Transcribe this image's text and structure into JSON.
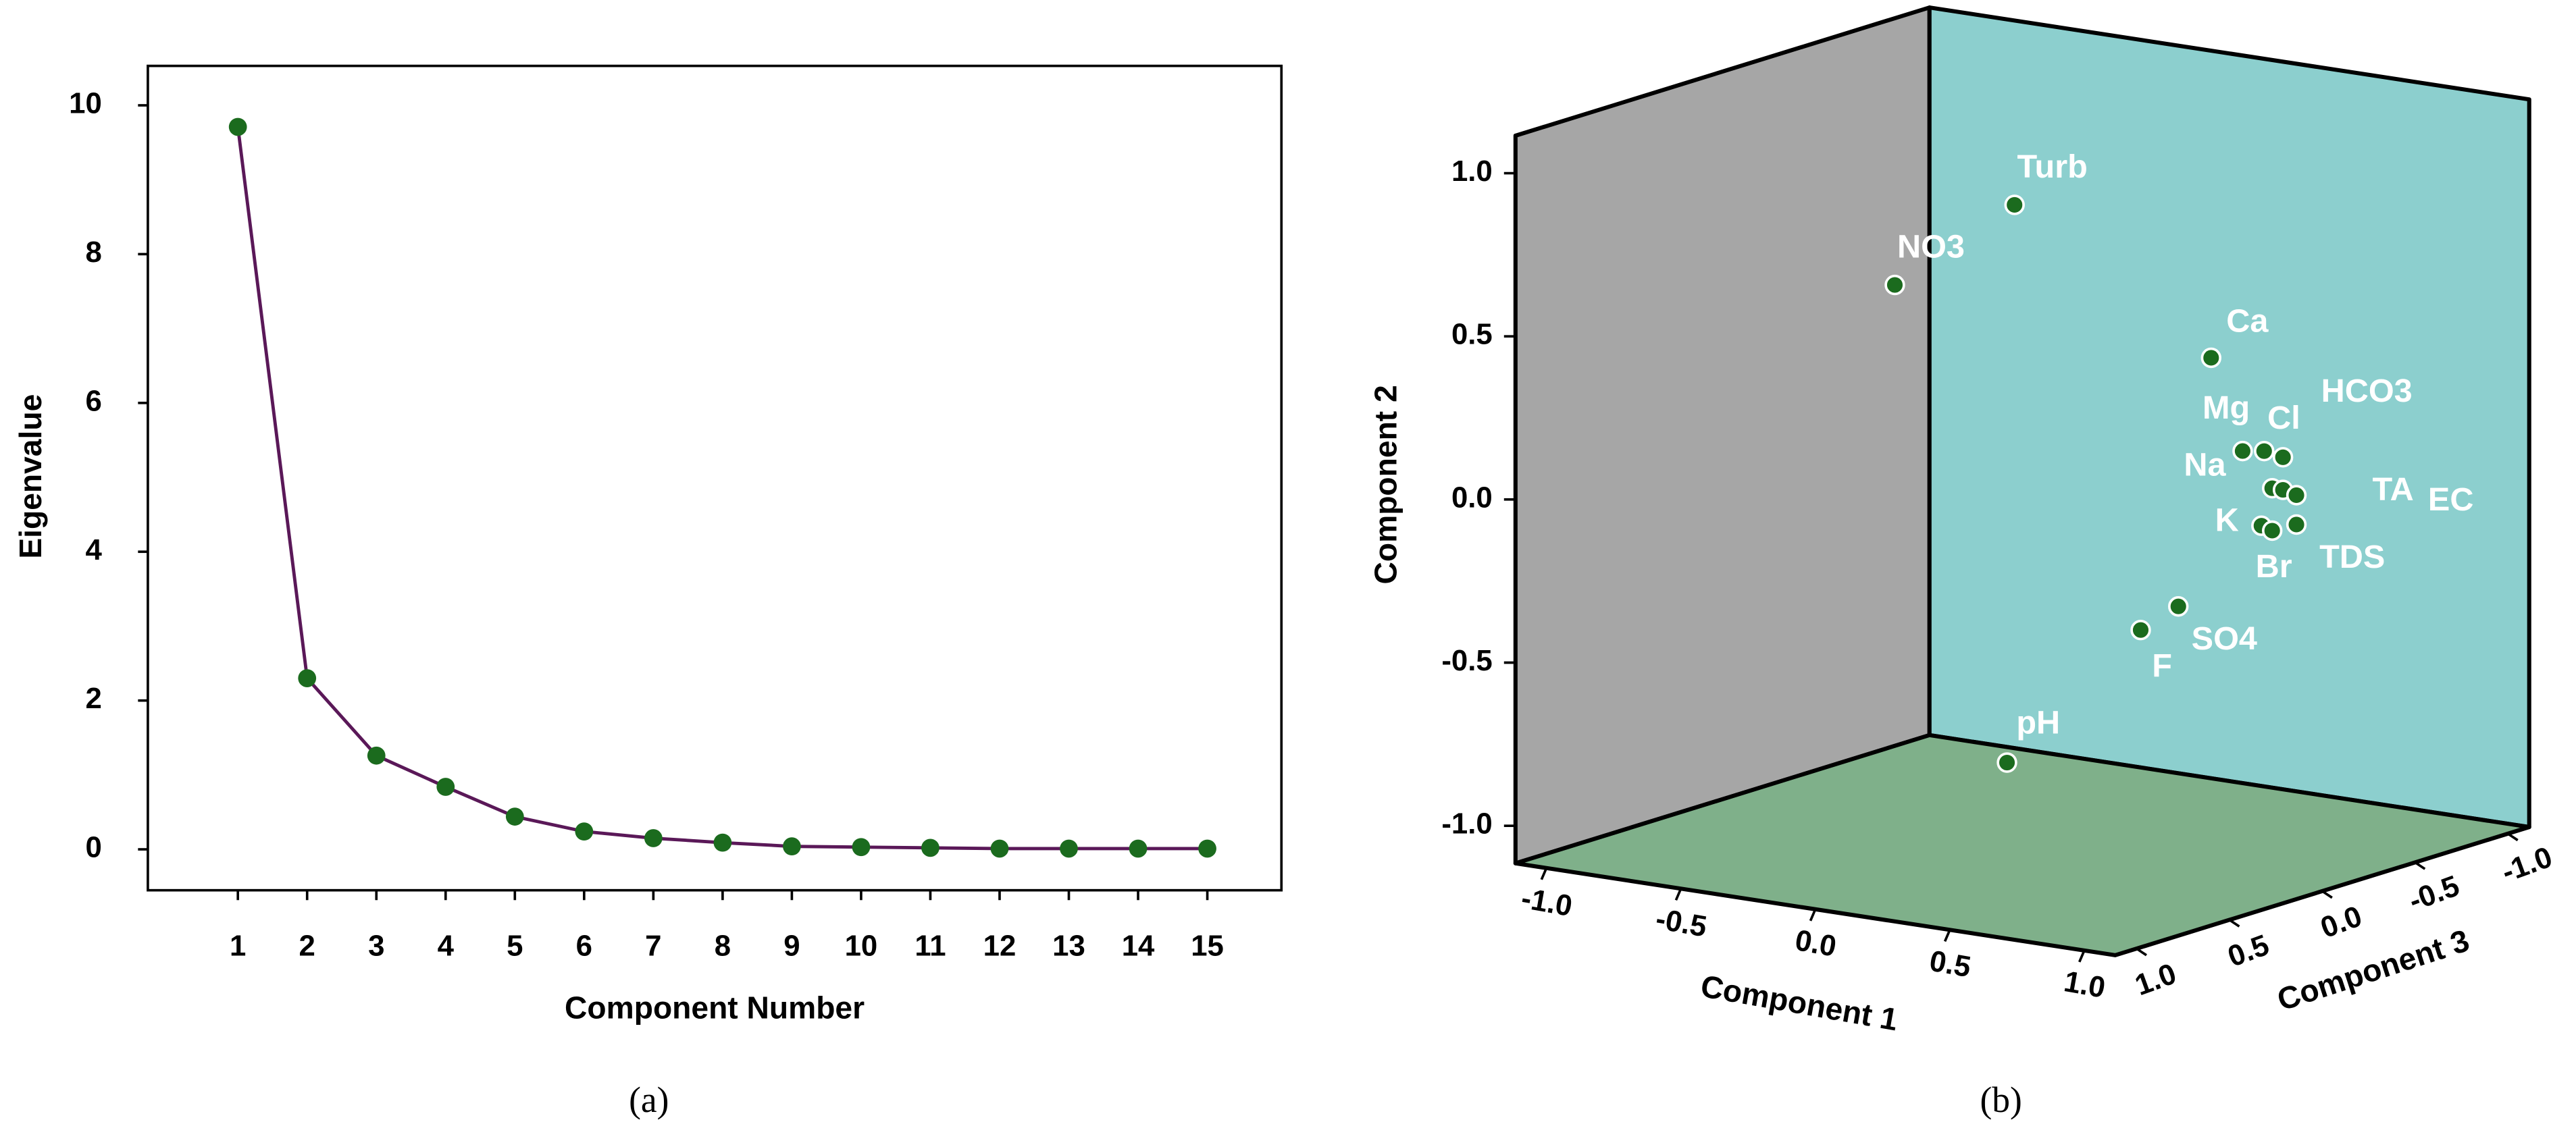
{
  "chart_data": [
    {
      "type": "line",
      "caption": "(a)",
      "xlabel": "Component Number",
      "ylabel": "Eigenvalue",
      "x": [
        1,
        2,
        3,
        4,
        5,
        6,
        7,
        8,
        9,
        10,
        11,
        12,
        13,
        14,
        15
      ],
      "values": [
        9.71,
        2.3,
        1.26,
        0.84,
        0.44,
        0.24,
        0.15,
        0.09,
        0.04,
        0.03,
        0.02,
        0.01,
        0.01,
        0.01,
        0.01
      ],
      "line_color": "#5a1858",
      "marker_color": "#1b6b1e",
      "xlim": [
        -0.3,
        16.07
      ],
      "ylim": [
        -0.55,
        10.53
      ],
      "xticks": [
        1,
        2,
        3,
        4,
        5,
        6,
        7,
        8,
        9,
        10,
        11,
        12,
        13,
        14,
        15
      ],
      "yticks": [
        0,
        2,
        4,
        6,
        8,
        10
      ]
    },
    {
      "type": "scatter3d",
      "caption": "(b)",
      "xlabel": "Component 1",
      "ylabel": "Component 2",
      "zlabel": "Component 3",
      "labels": [
        "Turb",
        "NO3",
        "Ca",
        "Mg",
        "Cl",
        "HCO3",
        "Na",
        "TA",
        "EC",
        "K",
        "Br",
        "TDS",
        "SO4",
        "F",
        "pH"
      ],
      "x": [
        0.04,
        -0.06,
        0.84,
        0.75,
        0.83,
        0.9,
        0.86,
        0.9,
        0.95,
        0.82,
        0.86,
        0.95,
        0.58,
        0.44,
        0.15
      ],
      "y": [
        0.87,
        0.7,
        0.52,
        0.17,
        0.18,
        0.17,
        0.07,
        0.07,
        0.06,
        -0.05,
        -0.06,
        -0.03,
        -0.31,
        -0.4,
        -0.79
      ],
      "z": [
        0.1,
        0.6,
        0.2,
        -0.1,
        -0.1,
        -0.1,
        -0.1,
        -0.1,
        -0.1,
        -0.1,
        -0.1,
        -0.1,
        0,
        0,
        0.3
      ],
      "color": "#1b6b1e",
      "wall_colors": [
        "#a6a6a6",
        "#8ccfce",
        "#7fb08a"
      ],
      "xlim": [
        -1.115,
        1.115
      ],
      "ylim": [
        -1.115,
        1.115
      ],
      "zlim": [
        -1.115,
        1.115
      ],
      "xticks": [
        {
          "value": -1,
          "label": "-1.0"
        },
        {
          "value": -0.5,
          "label": "-0.5"
        },
        {
          "value": 0,
          "label": "0.0"
        },
        {
          "value": 0.5,
          "label": "0.5"
        },
        {
          "value": 1,
          "label": "1.0"
        }
      ],
      "yticks": [
        {
          "value": -1,
          "label": "-1.0"
        },
        {
          "value": -0.5,
          "label": "-0.5"
        },
        {
          "value": 0,
          "label": "0.0"
        },
        {
          "value": 0.5,
          "label": "0.5"
        },
        {
          "value": 1,
          "label": "1.0"
        }
      ],
      "zticks": [
        {
          "value": -1,
          "label": "-1.0"
        },
        {
          "value": -0.5,
          "label": "-0.5"
        },
        {
          "value": 0,
          "label": "0.0"
        },
        {
          "value": 0.5,
          "label": "0.5"
        },
        {
          "value": 1,
          "label": "1.0"
        }
      ]
    }
  ]
}
